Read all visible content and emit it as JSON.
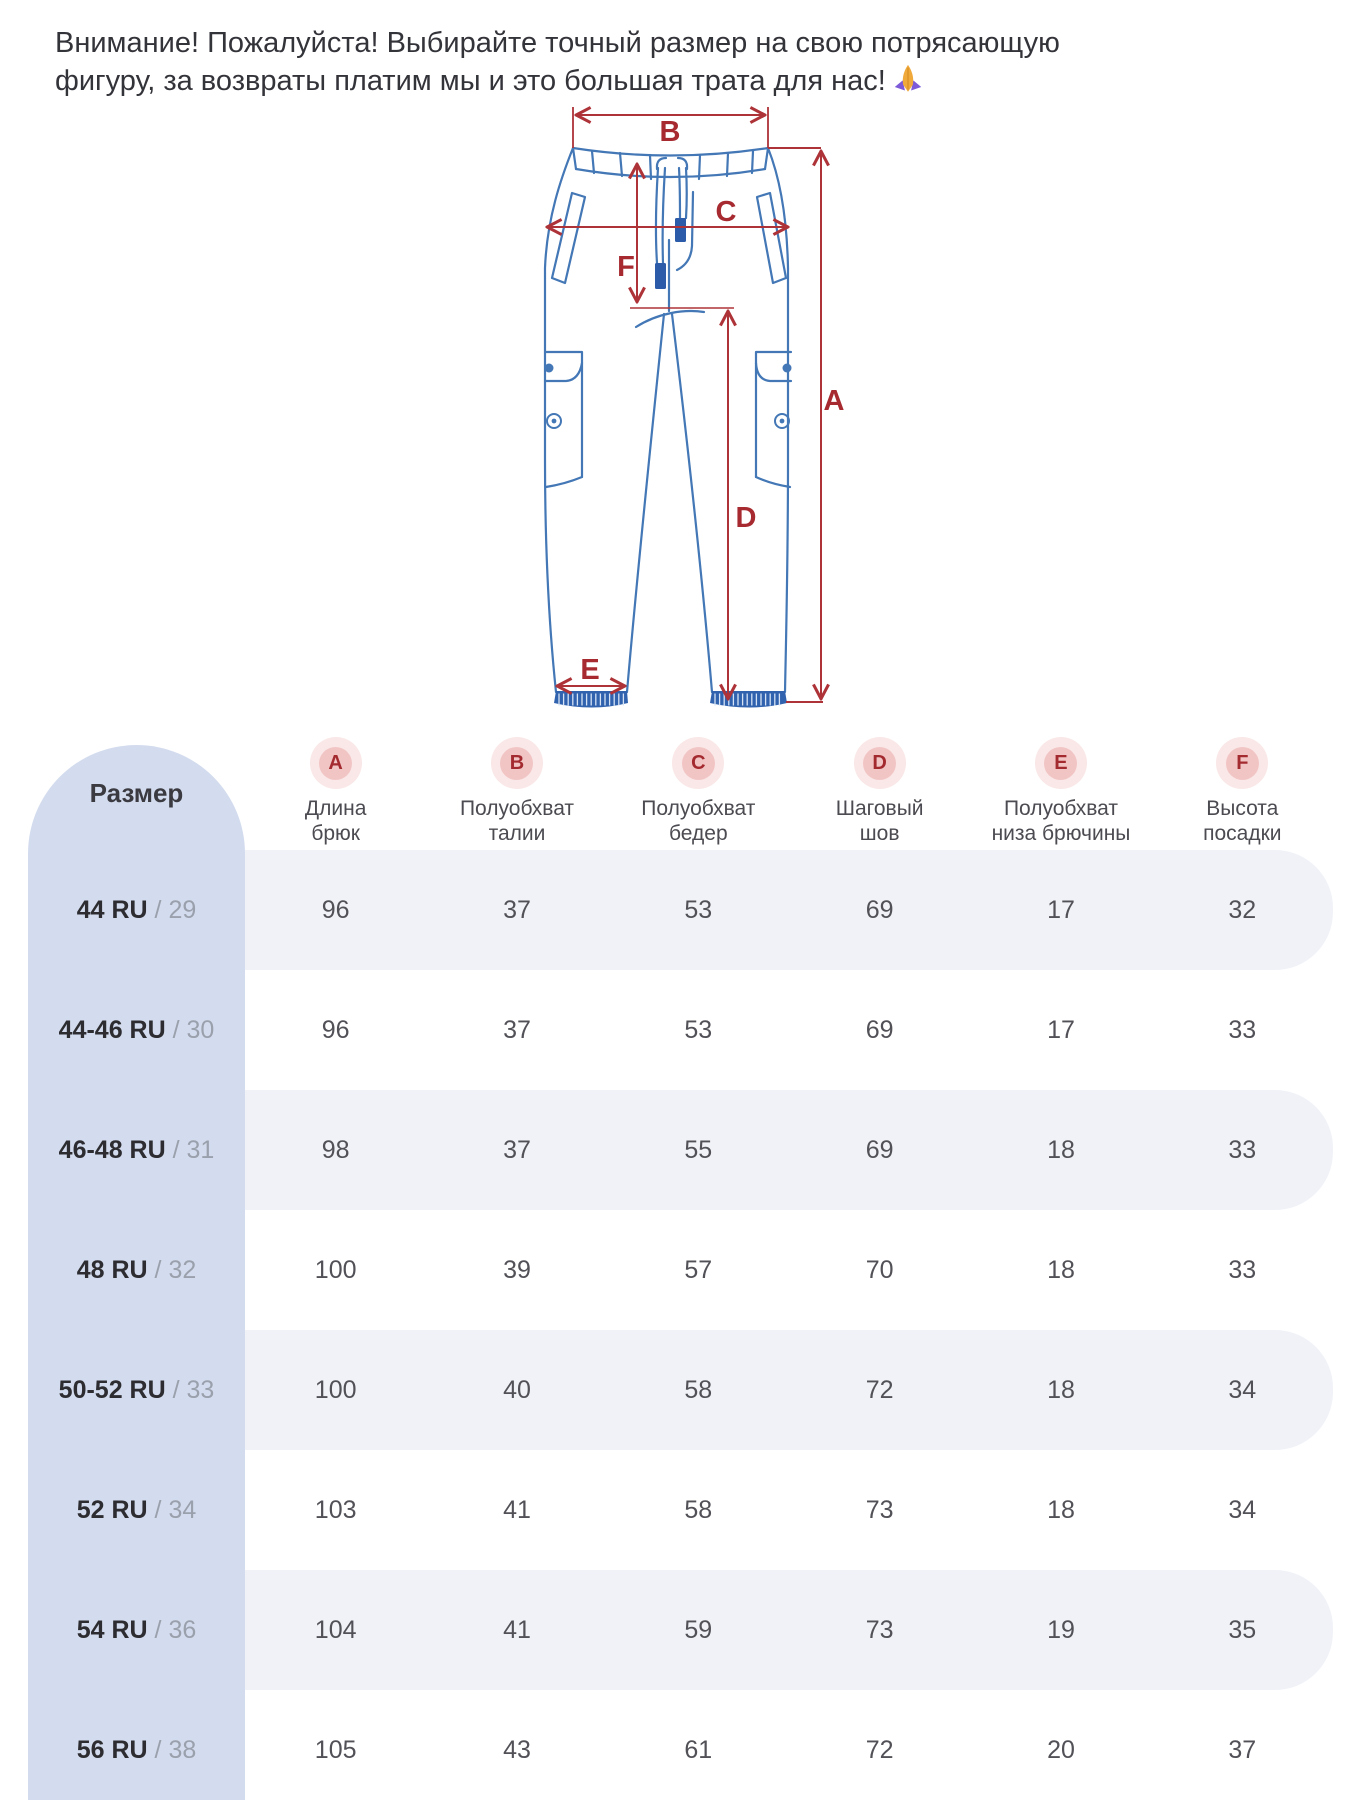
{
  "notice": {
    "line1": "Внимание! Пожалуйста! Выбирайте точный размер на свою потрясающую",
    "line2": "фигуру, за возвраты платим мы и это большая трата для нас!",
    "emoji_name": "folded-hands-emoji"
  },
  "diagram": {
    "labels": {
      "A": "A",
      "B": "B",
      "C": "C",
      "D": "D",
      "E": "E",
      "F": "F"
    },
    "line_color": "#4377b5",
    "measure_color": "#ad3338",
    "letter_color": "#a62a30",
    "aglet_color": "#2b5ba9",
    "cuff_color": "#3162ae"
  },
  "table": {
    "size_header": "Размер",
    "size_separator": " / ",
    "columns": [
      {
        "letter": "A",
        "label_line1": "Длина",
        "label_line2": "брюк"
      },
      {
        "letter": "B",
        "label_line1": "Полуобхват",
        "label_line2": "талии"
      },
      {
        "letter": "C",
        "label_line1": "Полуобхват",
        "label_line2": "бедер"
      },
      {
        "letter": "D",
        "label_line1": "Шаговый",
        "label_line2": "шов"
      },
      {
        "letter": "E",
        "label_line1": "Полуобхват",
        "label_line2": "низа брючины"
      },
      {
        "letter": "F",
        "label_line1": "Высота",
        "label_line2": "посадки"
      }
    ],
    "rows": [
      {
        "size_ru": "44 RU",
        "size_int": "29",
        "values": [
          "96",
          "37",
          "53",
          "69",
          "17",
          "32"
        ]
      },
      {
        "size_ru": "44-46 RU",
        "size_int": "30",
        "values": [
          "96",
          "37",
          "53",
          "69",
          "17",
          "33"
        ]
      },
      {
        "size_ru": "46-48 RU",
        "size_int": "31",
        "values": [
          "98",
          "37",
          "55",
          "69",
          "18",
          "33"
        ]
      },
      {
        "size_ru": "48 RU",
        "size_int": "32",
        "values": [
          "100",
          "39",
          "57",
          "70",
          "18",
          "33"
        ]
      },
      {
        "size_ru": "50-52 RU",
        "size_int": "33",
        "values": [
          "100",
          "40",
          "58",
          "72",
          "18",
          "34"
        ]
      },
      {
        "size_ru": "52 RU",
        "size_int": "34",
        "values": [
          "103",
          "41",
          "58",
          "73",
          "18",
          "34"
        ]
      },
      {
        "size_ru": "54 RU",
        "size_int": "36",
        "values": [
          "104",
          "41",
          "59",
          "73",
          "19",
          "35"
        ]
      },
      {
        "size_ru": "56 RU",
        "size_int": "38",
        "values": [
          "105",
          "43",
          "61",
          "72",
          "20",
          "37"
        ]
      }
    ],
    "colors": {
      "size_column_bg": "#d3dcee",
      "stripe_bg": "#f0f2f8",
      "badge_outer": "#fae7e7",
      "badge_inner": "#f2c5c5",
      "badge_letter": "#a32b30"
    }
  }
}
